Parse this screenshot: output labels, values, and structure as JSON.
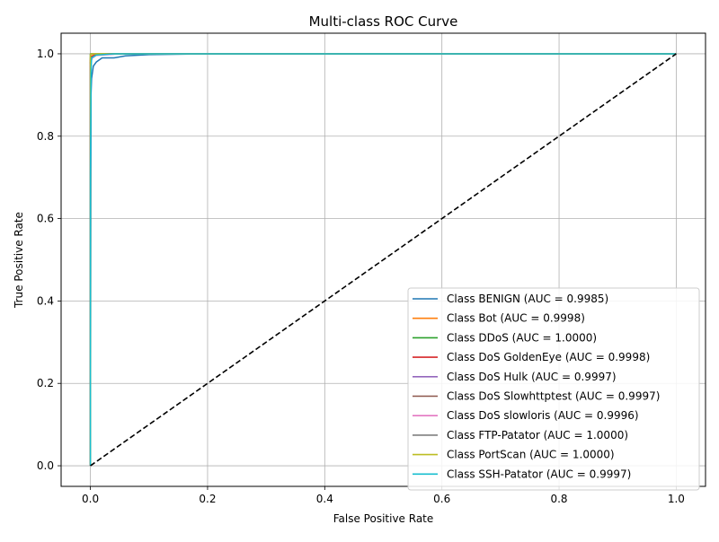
{
  "chart_data": {
    "type": "line",
    "title": "Multi-class ROC Curve",
    "xlabel": "False Positive Rate",
    "ylabel": "True Positive Rate",
    "xlim": [
      -0.05,
      1.05
    ],
    "ylim": [
      -0.05,
      1.05
    ],
    "xticks": [
      0.0,
      0.2,
      0.4,
      0.6,
      0.8,
      1.0
    ],
    "yticks": [
      0.0,
      0.2,
      0.4,
      0.6,
      0.8,
      1.0
    ],
    "xtick_labels": [
      "0.0",
      "0.2",
      "0.4",
      "0.6",
      "0.8",
      "1.0"
    ],
    "ytick_labels": [
      "0.0",
      "0.2",
      "0.4",
      "0.6",
      "0.8",
      "1.0"
    ],
    "grid": true,
    "legend_position": "lower right",
    "series": [
      {
        "name": "Class BENIGN (AUC = 0.9985)",
        "color": "#1f77b4",
        "x": [
          0,
          0.001,
          0.002,
          0.005,
          0.01,
          0.02,
          0.04,
          0.06,
          0.1,
          0.2,
          1.0
        ],
        "y": [
          0,
          0.9,
          0.94,
          0.97,
          0.98,
          0.99,
          0.99,
          0.995,
          0.998,
          1.0,
          1.0
        ]
      },
      {
        "name": "Class Bot (AUC = 0.9998)",
        "color": "#ff7f0e",
        "x": [
          0,
          0.0,
          0.002,
          0.01,
          0.03,
          1.0
        ],
        "y": [
          0,
          0.99,
          0.995,
          0.998,
          1.0,
          1.0
        ]
      },
      {
        "name": "Class DDoS (AUC = 1.0000)",
        "color": "#2ca02c",
        "x": [
          0,
          0.0,
          1.0
        ],
        "y": [
          0,
          1.0,
          1.0
        ]
      },
      {
        "name": "Class DoS GoldenEye (AUC = 0.9998)",
        "color": "#d62728",
        "x": [
          0,
          0.0,
          0.002,
          0.01,
          0.03,
          1.0
        ],
        "y": [
          0,
          0.985,
          0.993,
          0.998,
          1.0,
          1.0
        ]
      },
      {
        "name": "Class DoS Hulk (AUC = 0.9997)",
        "color": "#9467bd",
        "x": [
          0,
          0.0,
          0.002,
          0.01,
          0.04,
          1.0
        ],
        "y": [
          0,
          0.97,
          0.99,
          0.997,
          1.0,
          1.0
        ]
      },
      {
        "name": "Class DoS Slowhttptest (AUC = 0.9997)",
        "color": "#8c564b",
        "x": [
          0,
          0.0,
          0.003,
          0.01,
          0.04,
          1.0
        ],
        "y": [
          0,
          0.98,
          0.99,
          0.997,
          1.0,
          1.0
        ]
      },
      {
        "name": "Class DoS slowloris (AUC = 0.9996)",
        "color": "#e377c2",
        "x": [
          0,
          0.0,
          0.003,
          0.01,
          0.05,
          1.0
        ],
        "y": [
          0,
          0.975,
          0.99,
          0.996,
          1.0,
          1.0
        ]
      },
      {
        "name": "Class FTP-Patator (AUC = 1.0000)",
        "color": "#7f7f7f",
        "x": [
          0,
          0.0,
          1.0
        ],
        "y": [
          0,
          1.0,
          1.0
        ]
      },
      {
        "name": "Class PortScan (AUC = 1.0000)",
        "color": "#bcbd22",
        "x": [
          0,
          0.0,
          0.002,
          1.0
        ],
        "y": [
          0,
          0.999,
          1.0,
          1.0
        ]
      },
      {
        "name": "Class SSH-Patator (AUC = 0.9997)",
        "color": "#17becf",
        "x": [
          0,
          0.0,
          0.001,
          0.002,
          0.01,
          0.04,
          1.0
        ],
        "y": [
          0,
          0.7,
          0.95,
          0.99,
          0.997,
          1.0,
          1.0
        ]
      }
    ],
    "reference_line": {
      "x": [
        0,
        1
      ],
      "y": [
        0,
        1
      ],
      "color": "#000000",
      "style": "dashed"
    }
  }
}
